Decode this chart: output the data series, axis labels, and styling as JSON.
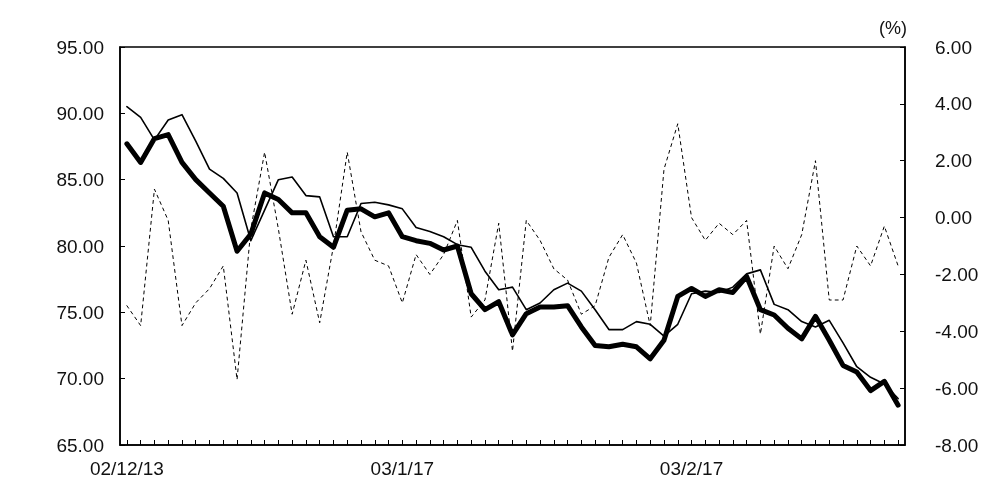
{
  "chart_data": {
    "type": "line",
    "y2label": "(%)",
    "grid": false,
    "marker": "none",
    "categories": [
      "02/12/13",
      null,
      null,
      null,
      null,
      null,
      null,
      null,
      null,
      null,
      null,
      null,
      null,
      null,
      null,
      null,
      null,
      null,
      null,
      null,
      "03/1/17",
      null,
      null,
      null,
      null,
      null,
      null,
      null,
      null,
      null,
      null,
      null,
      null,
      null,
      null,
      null,
      null,
      null,
      null,
      null,
      null,
      "03/2/17",
      null,
      null,
      null,
      null,
      null,
      null,
      null,
      null,
      null,
      null,
      null,
      null,
      null,
      null,
      null
    ],
    "ylim": [
      65,
      95
    ],
    "yticks": [
      {
        "value": 65,
        "label": "65.00"
      },
      {
        "value": 70,
        "label": "70.00"
      },
      {
        "value": 75,
        "label": "75.00"
      },
      {
        "value": 80,
        "label": "80.00"
      },
      {
        "value": 85,
        "label": "85.00"
      },
      {
        "value": 90,
        "label": "90.00"
      },
      {
        "value": 95,
        "label": "95.00"
      }
    ],
    "y2lim": [
      -8,
      6
    ],
    "y2ticks": [
      {
        "value": -8,
        "label": "-8.00"
      },
      {
        "value": -6,
        "label": "-6.00"
      },
      {
        "value": -4,
        "label": "-4.00"
      },
      {
        "value": -2,
        "label": "-2.00"
      },
      {
        "value": 0,
        "label": "0.00"
      },
      {
        "value": 2,
        "label": "2.00"
      },
      {
        "value": 4,
        "label": "4.00"
      },
      {
        "value": 6,
        "label": "6.00"
      }
    ],
    "series": [
      {
        "color": "#000000",
        "line_style": "solid",
        "values": [
          87.7,
          86.3,
          88.1,
          88.4,
          86.3,
          85.0,
          84.0,
          83.0,
          79.6,
          80.9,
          84.0,
          83.5,
          82.5,
          82.5,
          80.7,
          79.9,
          82.7,
          82.8,
          82.2,
          82.5,
          80.7,
          80.4,
          80.2,
          79.7,
          80.0,
          76.4,
          75.2,
          75.8,
          73.3,
          74.9,
          75.4,
          75.4,
          75.5,
          73.9,
          72.5,
          72.4,
          72.6,
          72.4,
          71.5,
          72.9,
          76.2,
          76.8,
          76.2,
          76.7,
          76.5,
          77.7,
          75.2,
          74.8,
          73.8,
          73.0,
          74.7,
          72.9,
          71.0,
          70.5,
          69.1,
          69.8,
          68.0
        ]
      },
      {
        "color": "#000000",
        "line_style": "solid",
        "values": [
          90.5,
          89.7,
          88.0,
          89.5,
          89.9,
          87.9,
          85.8,
          85.1,
          84.0,
          80.4,
          82.7,
          85.0,
          85.2,
          83.8,
          83.7,
          80.7,
          80.7,
          83.2,
          83.3,
          83.1,
          82.8,
          81.4,
          81.1,
          80.7,
          80.1,
          79.9,
          78.1,
          76.7,
          76.9,
          75.2,
          75.7,
          76.7,
          77.2,
          76.6,
          75.2,
          73.7,
          73.7,
          74.3,
          74.1,
          73.2,
          74.1,
          76.4,
          76.6,
          76.5,
          76.9,
          77.9,
          78.2,
          75.6,
          75.2,
          74.3,
          73.9,
          74.4,
          72.7,
          70.9,
          70.1,
          69.6,
          68.5
        ]
      },
      {
        "color": "#000000",
        "line_style": "dotted",
        "axis": "y2",
        "values": [
          -3.1,
          -3.8,
          1.0,
          -0.1,
          -3.8,
          -3.0,
          -2.5,
          -1.7,
          -5.7,
          -0.4,
          2.3,
          -0.4,
          -3.4,
          -1.5,
          -3.7,
          -1.0,
          2.3,
          -0.5,
          -1.5,
          -1.7,
          -3.0,
          -1.3,
          -2.0,
          -1.3,
          -0.1,
          -3.5,
          -2.9,
          -0.2,
          -4.7,
          -0.1,
          -0.8,
          -1.8,
          -2.2,
          -3.4,
          -3.1,
          -1.4,
          -0.6,
          -1.6,
          -3.8,
          1.7,
          3.3,
          0.0,
          -0.8,
          -0.2,
          -0.6,
          -0.1,
          -4.1,
          -1.0,
          -1.8,
          -0.6,
          2.0,
          -2.9,
          -2.9,
          -1.0,
          -1.7,
          -0.3,
          -1.7
        ]
      }
    ]
  }
}
